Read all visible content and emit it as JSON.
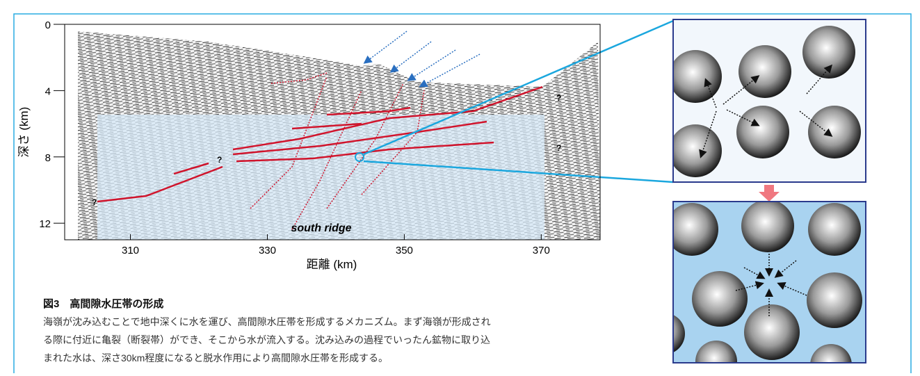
{
  "figure": {
    "y_label": "深さ (km)",
    "x_label": "距離 (km)",
    "xlim": [
      300.4,
      378.6
    ],
    "ylim": [
      0,
      13
    ],
    "xticks": [
      310,
      330,
      350,
      370
    ],
    "yticks": [
      0,
      4,
      8,
      12
    ],
    "annotation": "south ridge",
    "question_marks": [
      "?",
      "?",
      "?",
      "?"
    ]
  },
  "caption": {
    "title": "図3　高間隙水圧帯の形成",
    "lines": [
      "海嶺が沈み込むことで地中深くに水を運び、高間隙水圧帯を形成するメカニズム。まず海嶺が形成され",
      "る際に付近に亀裂（断裂帯）ができ、そこから水が流入する。沈み込みの過程でいったん鉱物に取り込",
      "まれた水は、深さ30km程度になると脱水作用により高間隙水圧帯を形成する。"
    ]
  }
}
